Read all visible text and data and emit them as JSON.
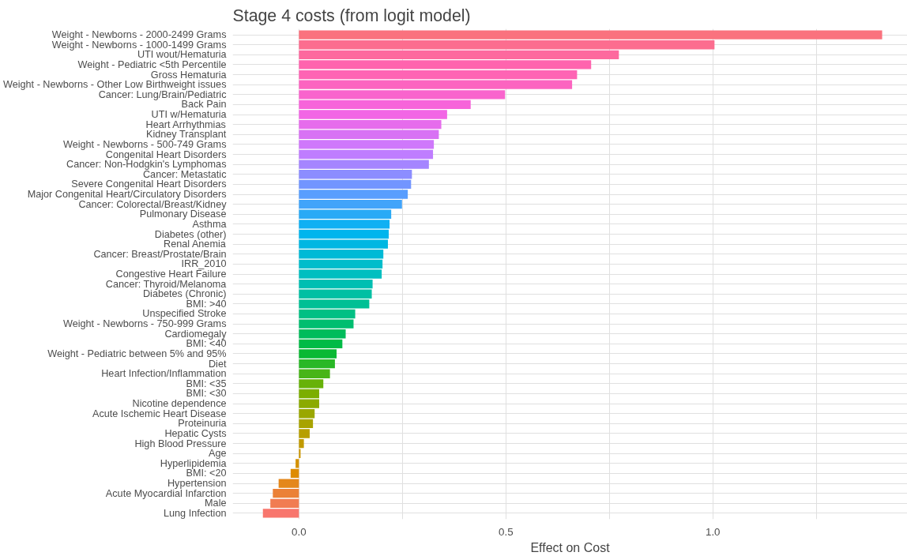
{
  "chart_data": {
    "type": "bar",
    "orientation": "horizontal",
    "title": "Stage 4 costs (from logit model)",
    "xlabel": "Effect on Cost",
    "categories": [
      "Weight - Newborns - 2000-2499 Grams",
      "Weight - Newborns - 1000-1499 Grams",
      "UTI wout/Hematuria",
      "Weight - Pediatric <5th Percentile",
      "Gross Hematuria",
      "Weight - Newborns - Other Low Birthweight issues",
      "Cancer: Lung/Brain/Pediatric",
      "Back Pain",
      "UTI w/Hematuria",
      "Heart Arrhythmias",
      "Kidney Transplant",
      "Weight - Newborns - 500-749 Grams",
      "Congenital Heart Disorders",
      "Cancer: Non-Hodgkin's Lymphomas",
      "Cancer: Metastatic",
      "Severe Congenital Heart Disorders",
      "Major Congenital Heart/Circulatory Disorders",
      "Cancer: Colorectal/Breast/Kidney",
      "Pulmonary Disease",
      "Asthma",
      "Diabetes (other)",
      "Renal Anemia",
      "Cancer: Breast/Prostate/Brain",
      "IRR_2010",
      "Congestive Heart Failure",
      "Cancer: Thyroid/Melanoma",
      "Diabetes (Chronic)",
      "BMI: >40",
      "Unspecified Stroke",
      "Weight - Newborns - 750-999 Grams",
      "Cardiomegaly",
      "BMI: <40",
      "Weight - Pediatric between 5% and 95%",
      "Diet",
      "Heart Infection/Inflammation",
      "BMI: <35",
      "BMI: <30",
      "Nicotine dependence",
      "Acute Ischemic Heart Disease",
      "Proteinuria",
      "Hepatic Cysts",
      "High Blood Pressure",
      "Age",
      "Hyperlipidemia",
      "BMI: <20",
      "Hypertension",
      "Acute Myocardial Infarction",
      "Male",
      "Lung Infection"
    ],
    "values": [
      1.409,
      1.004,
      0.773,
      0.706,
      0.672,
      0.66,
      0.498,
      0.415,
      0.358,
      0.344,
      0.338,
      0.326,
      0.324,
      0.314,
      0.273,
      0.271,
      0.263,
      0.249,
      0.223,
      0.219,
      0.217,
      0.215,
      0.204,
      0.202,
      0.2,
      0.178,
      0.176,
      0.17,
      0.136,
      0.132,
      0.113,
      0.105,
      0.091,
      0.087,
      0.075,
      0.059,
      0.049,
      0.049,
      0.038,
      0.034,
      0.026,
      0.012,
      0.004,
      -0.008,
      -0.02,
      -0.049,
      -0.063,
      -0.069,
      -0.087
    ],
    "colors": [
      "#FA727E",
      "#FC6D8F",
      "#FD699E",
      "#FF64AE",
      "#FE64B4",
      "#FC64C0",
      "#F964CD",
      "#F764DA",
      "#F266E5",
      "#E66CEC",
      "#D872F4",
      "#CF78FB",
      "#BF7DFF",
      "#A585FF",
      "#8C8DFF",
      "#7295FF",
      "#599EFE",
      "#41A4FA",
      "#29AAF6",
      "#10B0F3",
      "#00B5ED",
      "#00B7E2",
      "#00BAD6",
      "#00BDCB",
      "#00BFC0",
      "#00BFB2",
      "#00C0A3",
      "#00C095",
      "#00C084",
      "#00BE70",
      "#00BC5B",
      "#00BB46",
      "#0AB934",
      "#29B826",
      "#48B518",
      "#67B209",
      "#7CAE00",
      "#8BAA00",
      "#9AA700",
      "#A8A300",
      "#B79F00",
      "#C19A00",
      "#CB9600",
      "#D49100",
      "#DE8C00",
      "#E4871B",
      "#EB8137",
      "#F17C52",
      "#F8766D"
    ],
    "xlim": [
      -0.16,
      1.47
    ],
    "xticks": [
      {
        "value": 0,
        "label": "0.0"
      },
      {
        "value": 0.25,
        "label": null
      },
      {
        "value": 0.5,
        "label": "0.5"
      },
      {
        "value": 0.75,
        "label": null
      },
      {
        "value": 1,
        "label": "1.0"
      },
      {
        "value": 1.25,
        "label": null
      }
    ],
    "grid": true
  }
}
